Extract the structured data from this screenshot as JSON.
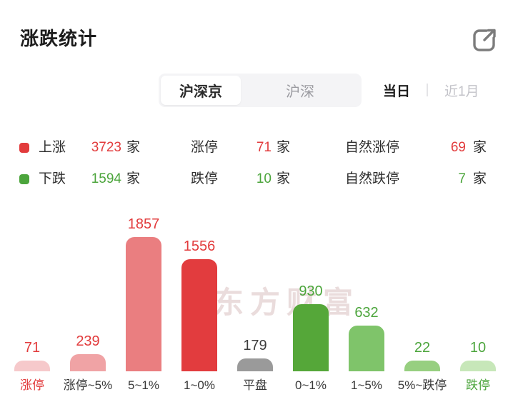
{
  "header": {
    "title": "涨跌统计",
    "share_icon": "external-link-icon"
  },
  "market_tabs": {
    "options": [
      {
        "label": "沪深京",
        "selected": true
      },
      {
        "label": "沪深",
        "selected": false
      }
    ]
  },
  "period_tabs": {
    "options": [
      {
        "label": "当日",
        "selected": true
      },
      {
        "label": "近1月",
        "selected": false
      }
    ]
  },
  "summary": {
    "unit": "家",
    "rows": [
      {
        "legend": "上涨",
        "legend_color": "#e23b3c",
        "count": "3723",
        "count_color": "#e23b3c",
        "limit_label": "涨停",
        "limit_count": "71",
        "natural_label": "自然涨停",
        "natural_count": "69"
      },
      {
        "legend": "下跌",
        "legend_color": "#4ca53c",
        "count": "1594",
        "count_color": "#4ca53c",
        "limit_label": "跌停",
        "limit_count": "10",
        "natural_label": "自然跌停",
        "natural_count": "7"
      }
    ]
  },
  "watermark": "东方财富",
  "chart_data": {
    "type": "bar",
    "title": "涨跌统计",
    "categories": [
      "涨停",
      "涨停~5%",
      "5~1%",
      "1~0%",
      "平盘",
      "0~1%",
      "1~5%",
      "5%~跌停",
      "跌停"
    ],
    "values": [
      71,
      239,
      1857,
      1556,
      179,
      930,
      632,
      22,
      10
    ],
    "bar_colors": [
      "#f6c9cb",
      "#f0a3a5",
      "#ea7e80",
      "#e23c3e",
      "#9a9a9a",
      "#55a739",
      "#7fc46a",
      "#97cf80",
      "#c7e7b9"
    ],
    "value_label_colors": [
      "#e23b3c",
      "#e23b3c",
      "#e23b3c",
      "#e23b3c",
      "#3c3c3c",
      "#4ca53c",
      "#4ca53c",
      "#4ca53c",
      "#4ca53c"
    ],
    "category_label_colors": [
      "#e23b3c",
      "#383838",
      "#383838",
      "#383838",
      "#383838",
      "#383838",
      "#383838",
      "#383838",
      "#4ca53c"
    ],
    "xlabel": "",
    "ylabel": "",
    "ylim": [
      0,
      1857
    ],
    "grid": false,
    "legend_position": "none",
    "value_labels_shown": true
  }
}
